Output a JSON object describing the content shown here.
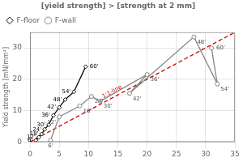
{
  "chart_data": {
    "type": "line",
    "title": "[yield strength] > [strength at 2 mm]",
    "ylabel": "Yield strength [mN/mm²]",
    "xlim": [
      0,
      35
    ],
    "ylim": [
      0,
      35
    ],
    "xticks": [
      0,
      5,
      10,
      15,
      20,
      25,
      30,
      35
    ],
    "yticks": [
      0,
      10,
      20,
      30
    ],
    "grid": true,
    "legend": "upper left",
    "series": [
      {
        "name": "F-floor",
        "color": "#111111",
        "marker": "diamond",
        "line_style": "solid",
        "x": [
          1.0,
          1.5,
          2.0,
          2.5,
          3.2,
          4.0,
          5.0,
          6.0,
          7.5,
          9.5
        ],
        "values": [
          0.5,
          1.5,
          2.5,
          4.0,
          5.5,
          8.5,
          11.0,
          13.5,
          16.0,
          24.0
        ],
        "point_labels": [
          "6'",
          "12'",
          "18'",
          "24'",
          "30'",
          "36'",
          "42'",
          "48'",
          "54'",
          "60'"
        ],
        "label_color": "#000000"
      },
      {
        "name": "F-wall",
        "color": "#888888",
        "marker": "circle",
        "line_style": "solid",
        "x": [
          3.5,
          5.0,
          8.5,
          10.5,
          12.0,
          20.0,
          17.0,
          28.0,
          32.0,
          31.0
        ],
        "values": [
          0.5,
          8.0,
          11.5,
          14.5,
          13.0,
          21.5,
          15.5,
          33.5,
          18.5,
          30.0
        ],
        "point_labels": [
          "6'",
          "12'",
          "18'",
          "24'",
          "30'",
          "36'",
          "42'",
          "48'",
          "54'",
          "60'"
        ],
        "label_color": "#555555"
      }
    ],
    "reference_lines": [
      {
        "x": [
          0,
          35
        ],
        "values": [
          0,
          35
        ],
        "color": "#cc0000",
        "line_style": "dashed"
      }
    ],
    "annotations": [
      {
        "text": "1:1-line",
        "x": 14,
        "y": 16,
        "color": "#cc0000",
        "along": 0
      }
    ]
  }
}
